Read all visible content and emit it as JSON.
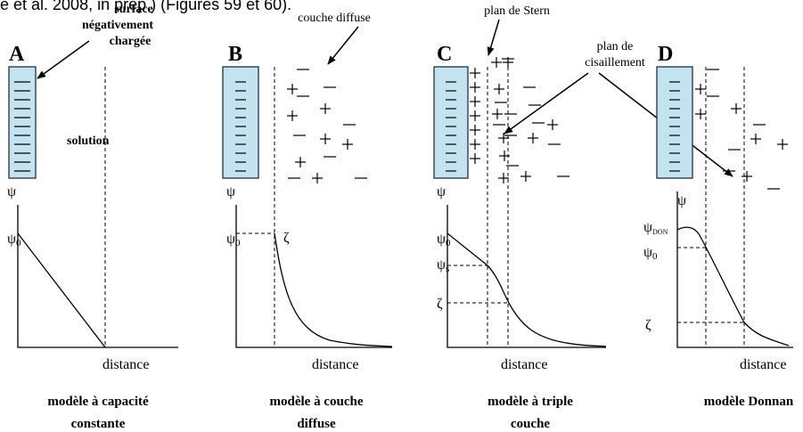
{
  "header": {
    "text": "e et al. 2008, in prep.) (Figures 59 et 60)."
  },
  "panels": [
    {
      "letter": "A",
      "caption": [
        "modèle à capacité",
        "constante"
      ],
      "annotations": {
        "surface": [
          "surface",
          "négativement",
          "chargée"
        ],
        "solution": "solution"
      },
      "axis": {
        "y": "ψ",
        "psi0": {
          "base": "ψ",
          "sub": "0"
        },
        "x": "distance"
      }
    },
    {
      "letter": "B",
      "caption": [
        "modèle à couche",
        "diffuse"
      ],
      "annotations": {
        "layer": "couche diffuse"
      },
      "axis": {
        "y": "ψ",
        "psi0": {
          "base": "ψ",
          "sub": "0"
        },
        "zeta": "ζ",
        "x": "distance"
      }
    },
    {
      "letter": "C",
      "caption": [
        "modèle à triple",
        "couche"
      ],
      "annotations": {
        "stern": "plan de Stern",
        "shear": [
          "plan de",
          "cisaillement"
        ]
      },
      "axis": {
        "y": "ψ",
        "psi0": {
          "base": "ψ",
          "sub": "0"
        },
        "psis": {
          "base": "ψ",
          "sub": "s"
        },
        "zeta": "ζ",
        "x": "distance"
      }
    },
    {
      "letter": "D",
      "caption": [
        "modèle Donnan"
      ],
      "axis": {
        "y": "ψ",
        "psidon": {
          "base": "ψ",
          "sub": "DON"
        },
        "psi0": {
          "base": "ψ",
          "sub": "0"
        },
        "zeta": "ζ",
        "x": "distance"
      }
    }
  ]
}
